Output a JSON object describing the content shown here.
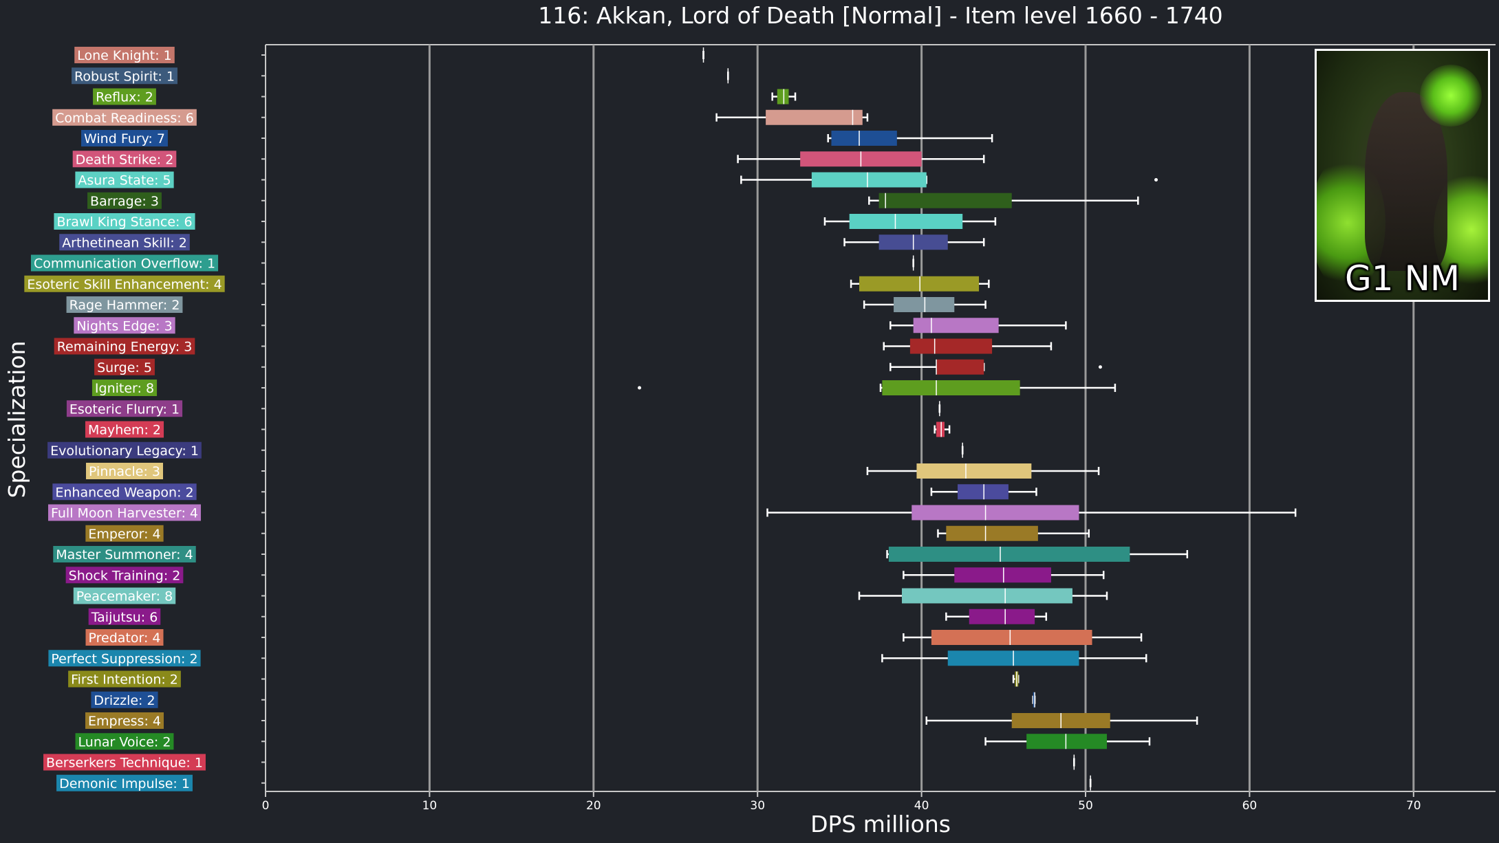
{
  "chart_data": {
    "type": "boxplot",
    "title": "116: Akkan, Lord of Death [Normal] - Item level 1660 - 1740",
    "xlabel": "DPS millions",
    "ylabel": "Specialization",
    "xlim": [
      0,
      75
    ],
    "xticks": [
      0,
      10,
      20,
      30,
      40,
      50,
      60,
      70
    ],
    "grid": "vertical",
    "series": [
      {
        "name": "Lone Knight: 1",
        "color": "#c4766b",
        "min": 26.7,
        "q1": 26.7,
        "median": 26.7,
        "q3": 26.7,
        "max": 26.7,
        "outliers": []
      },
      {
        "name": "Robust Spirit: 1",
        "color": "#3c5a7c",
        "min": 28.2,
        "q1": 28.2,
        "median": 28.2,
        "q3": 28.2,
        "max": 28.2,
        "outliers": []
      },
      {
        "name": "Reflux: 2",
        "color": "#5e9d1f",
        "min": 30.9,
        "q1": 31.2,
        "median": 31.6,
        "q3": 31.9,
        "max": 32.3,
        "outliers": []
      },
      {
        "name": "Combat Readiness: 6",
        "color": "#d59b8f",
        "min": 27.5,
        "q1": 30.5,
        "median": 35.8,
        "q3": 36.4,
        "max": 36.7,
        "outliers": []
      },
      {
        "name": "Wind Fury: 7",
        "color": "#1e4f95",
        "min": 34.3,
        "q1": 34.5,
        "median": 36.2,
        "q3": 38.5,
        "max": 44.3,
        "outliers": []
      },
      {
        "name": "Death Strike: 2",
        "color": "#d2557a",
        "min": 28.8,
        "q1": 32.6,
        "median": 36.3,
        "q3": 40.0,
        "max": 43.8,
        "outliers": []
      },
      {
        "name": "Asura State: 5",
        "color": "#5dd1c4",
        "min": 29.0,
        "q1": 33.3,
        "median": 36.7,
        "q3": 40.3,
        "max": 40.3,
        "outliers": [
          54.3
        ]
      },
      {
        "name": "Barrage: 3",
        "color": "#2f5f1c",
        "min": 36.8,
        "q1": 37.4,
        "median": 37.8,
        "q3": 45.5,
        "max": 53.2,
        "outliers": []
      },
      {
        "name": "Brawl King Stance: 6",
        "color": "#5ad1c4",
        "min": 34.1,
        "q1": 35.6,
        "median": 38.4,
        "q3": 42.5,
        "max": 44.5,
        "outliers": []
      },
      {
        "name": "Arthetinean Skill: 2",
        "color": "#474d93",
        "min": 35.3,
        "q1": 37.4,
        "median": 39.5,
        "q3": 41.6,
        "max": 43.8,
        "outliers": []
      },
      {
        "name": "Communication Overflow: 1",
        "color": "#2e9e8f",
        "min": 39.5,
        "q1": 39.5,
        "median": 39.5,
        "q3": 39.5,
        "max": 39.5,
        "outliers": []
      },
      {
        "name": "Esoteric Skill Enhancement: 4",
        "color": "#9a9a26",
        "min": 35.7,
        "q1": 36.2,
        "median": 39.9,
        "q3": 43.5,
        "max": 44.1,
        "outliers": []
      },
      {
        "name": "Rage Hammer: 2",
        "color": "#7f969f",
        "min": 36.5,
        "q1": 38.3,
        "median": 40.2,
        "q3": 42.0,
        "max": 43.9,
        "outliers": []
      },
      {
        "name": "Nights Edge: 3",
        "color": "#b877c5",
        "min": 38.1,
        "q1": 39.5,
        "median": 40.6,
        "q3": 44.7,
        "max": 48.8,
        "outliers": []
      },
      {
        "name": "Remaining Energy: 3",
        "color": "#a52828",
        "min": 37.7,
        "q1": 39.3,
        "median": 40.8,
        "q3": 44.3,
        "max": 47.9,
        "outliers": []
      },
      {
        "name": "Surge: 5",
        "color": "#a52828",
        "min": 38.1,
        "q1": 40.9,
        "median": 40.9,
        "q3": 43.8,
        "max": 43.8,
        "outliers": [
          50.9
        ]
      },
      {
        "name": "Igniter: 8",
        "color": "#5e9d1f",
        "min": 37.5,
        "q1": 37.6,
        "median": 40.9,
        "q3": 46.0,
        "max": 51.8,
        "outliers": [
          22.8
        ]
      },
      {
        "name": "Esoteric Flurry: 1",
        "color": "#8e3d8a",
        "min": 41.1,
        "q1": 41.1,
        "median": 41.1,
        "q3": 41.1,
        "max": 41.1,
        "outliers": []
      },
      {
        "name": "Mayhem: 2",
        "color": "#d43c55",
        "min": 40.8,
        "q1": 40.9,
        "median": 41.2,
        "q3": 41.4,
        "max": 41.7,
        "outliers": []
      },
      {
        "name": "Evolutionary Legacy: 1",
        "color": "#3b3b7e",
        "min": 42.5,
        "q1": 42.5,
        "median": 42.5,
        "q3": 42.5,
        "max": 42.5,
        "outliers": []
      },
      {
        "name": "Pinnacle: 3",
        "color": "#e0c67c",
        "min": 36.7,
        "q1": 39.7,
        "median": 42.7,
        "q3": 46.7,
        "max": 50.8,
        "outliers": []
      },
      {
        "name": "Enhanced Weapon: 2",
        "color": "#4b4b9d",
        "min": 40.6,
        "q1": 42.2,
        "median": 43.8,
        "q3": 45.3,
        "max": 47.0,
        "outliers": []
      },
      {
        "name": "Full Moon Harvester: 4",
        "color": "#b877c5",
        "min": 30.6,
        "q1": 39.4,
        "median": 43.9,
        "q3": 49.6,
        "max": 62.8,
        "outliers": []
      },
      {
        "name": "Emperor: 4",
        "color": "#9a7a26",
        "min": 41.0,
        "q1": 41.5,
        "median": 43.9,
        "q3": 47.1,
        "max": 50.2,
        "outliers": []
      },
      {
        "name": "Master Summoner: 4",
        "color": "#2e8f84",
        "min": 37.9,
        "q1": 38.0,
        "median": 44.8,
        "q3": 52.7,
        "max": 56.2,
        "outliers": []
      },
      {
        "name": "Shock Training: 2",
        "color": "#8a1a8a",
        "min": 38.9,
        "q1": 42.0,
        "median": 45.0,
        "q3": 47.9,
        "max": 51.1,
        "outliers": []
      },
      {
        "name": "Peacemaker: 8",
        "color": "#74c7bf",
        "min": 36.2,
        "q1": 38.8,
        "median": 45.1,
        "q3": 49.2,
        "max": 51.3,
        "outliers": []
      },
      {
        "name": "Taijutsu: 6",
        "color": "#8a1a8a",
        "min": 41.5,
        "q1": 42.9,
        "median": 45.1,
        "q3": 46.9,
        "max": 47.6,
        "outliers": []
      },
      {
        "name": "Predator: 4",
        "color": "#d47155",
        "min": 38.9,
        "q1": 40.6,
        "median": 45.4,
        "q3": 50.4,
        "max": 53.4,
        "outliers": []
      },
      {
        "name": "Perfect Suppression: 2",
        "color": "#1b86ad",
        "min": 37.6,
        "q1": 41.6,
        "median": 45.6,
        "q3": 49.6,
        "max": 53.7,
        "outliers": []
      },
      {
        "name": "First Intention: 2",
        "color": "#8a8a1a",
        "min": 45.6,
        "q1": 45.7,
        "median": 45.8,
        "q3": 45.9,
        "max": 45.9,
        "outliers": []
      },
      {
        "name": "Drizzle: 2",
        "color": "#1e4f95",
        "min": 46.8,
        "q1": 46.8,
        "median": 46.9,
        "q3": 46.9,
        "max": 46.9,
        "outliers": []
      },
      {
        "name": "Empress: 4",
        "color": "#9a7a26",
        "min": 40.3,
        "q1": 45.5,
        "median": 48.5,
        "q3": 51.5,
        "max": 56.8,
        "outliers": []
      },
      {
        "name": "Lunar Voice: 2",
        "color": "#258a25",
        "min": 43.9,
        "q1": 46.4,
        "median": 48.8,
        "q3": 51.3,
        "max": 53.9,
        "outliers": []
      },
      {
        "name": "Berserkers Technique: 1",
        "color": "#d43c55",
        "min": 49.3,
        "q1": 49.3,
        "median": 49.3,
        "q3": 49.3,
        "max": 49.3,
        "outliers": []
      },
      {
        "name": "Demonic Impulse: 1",
        "color": "#1b86ad",
        "min": 50.3,
        "q1": 50.3,
        "median": 50.3,
        "q3": 50.3,
        "max": 50.3,
        "outliers": []
      }
    ]
  },
  "inset": {
    "label": "G1 NM"
  }
}
